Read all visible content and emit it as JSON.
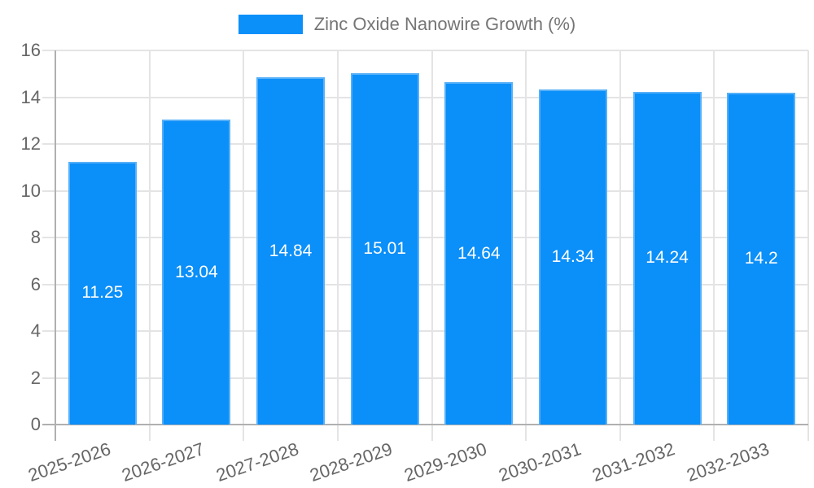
{
  "chart_data": {
    "type": "bar",
    "title": "Zinc Oxide Nanowire Growth (%)",
    "categories": [
      "2025-2026",
      "2026-2027",
      "2027-2028",
      "2028-2029",
      "2029-2030",
      "2030-2031",
      "2031-2032",
      "2032-2033"
    ],
    "values": [
      11.25,
      13.04,
      14.84,
      15.01,
      14.64,
      14.34,
      14.24,
      14.2
    ],
    "value_labels": [
      "11.25",
      "13.04",
      "14.84",
      "15.01",
      "14.64",
      "14.34",
      "14.24",
      "14.2"
    ],
    "xlabel": "",
    "ylabel": "",
    "ylim": [
      0,
      16
    ],
    "yticks": [
      0,
      2,
      4,
      6,
      8,
      10,
      12,
      14,
      16
    ],
    "grid": true,
    "legend_position": "top",
    "value_label_position": "center-of-bar",
    "x_tick_rotation_deg": -19,
    "colors": {
      "bar": "#0b8ff9",
      "bar_border": "#56b0f8",
      "grid": "#e4e4e4",
      "axis": "#b0b0b0",
      "tick_label": "#666666",
      "legend_label": "#757575",
      "value_label": "#ffffff",
      "background": "#ffffff"
    }
  }
}
